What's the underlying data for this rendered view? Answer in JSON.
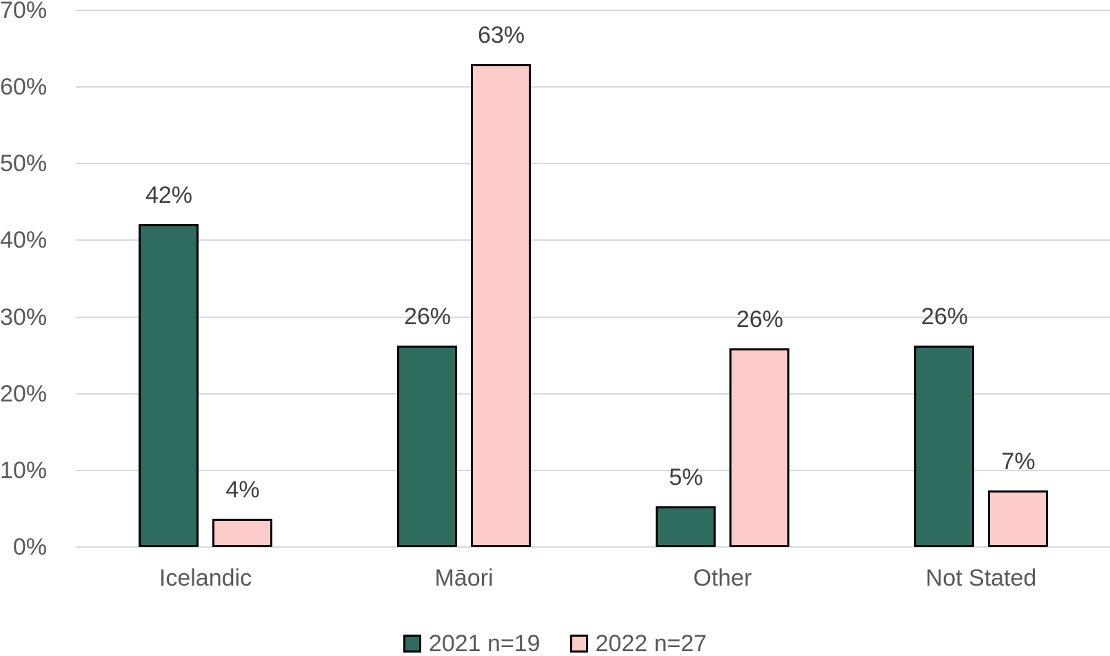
{
  "page": {
    "background": "#FFFFFF"
  },
  "chart_data": {
    "type": "bar",
    "title": "",
    "xlabel": "",
    "ylabel": "",
    "categories": [
      "Icelandic",
      "Māori",
      "Other",
      "Not Stated"
    ],
    "series": [
      {
        "name": "2021 n=19",
        "color": "#2E6C60",
        "values": [
          42,
          26,
          5,
          26
        ],
        "data_labels": [
          "42%",
          "26%",
          "5%",
          "26%"
        ],
        "bar_heights_pct": [
          42.1,
          26.3,
          5.3,
          26.3
        ]
      },
      {
        "name": "2022 n=27",
        "color": "#FDCCC8",
        "values": [
          4,
          63,
          26,
          7
        ],
        "data_labels": [
          "4%",
          "63%",
          "26%",
          "7%"
        ],
        "bar_heights_pct": [
          3.7,
          63.0,
          25.9,
          7.4
        ]
      }
    ],
    "ylim": [
      0,
      70
    ],
    "ytick_step": 10,
    "ytick_labels": [
      "0%",
      "10%",
      "20%",
      "30%",
      "40%",
      "50%",
      "60%",
      "70%"
    ],
    "grid": true,
    "legend_position": "bottom",
    "styles": {
      "grid_color": "#D9D9D9",
      "axis_text_color": "#595959",
      "data_label_color": "#404040",
      "bar_border_color": "#000000"
    }
  }
}
